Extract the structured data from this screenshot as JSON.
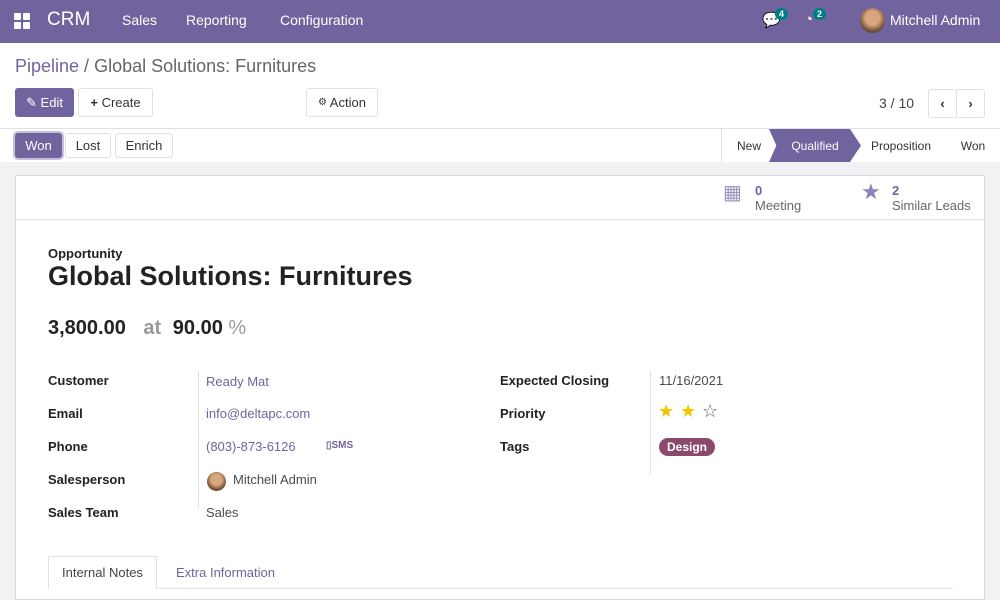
{
  "navbar": {
    "app": "CRM",
    "menus": [
      "Sales",
      "Reporting",
      "Configuration"
    ],
    "messages_count": "4",
    "activities_count": "2",
    "user": "Mitchell Admin",
    "color": "#71639e"
  },
  "breadcrumb": {
    "parent": "Pipeline",
    "current": "Global Solutions: Furnitures"
  },
  "toolbar": {
    "edit": "Edit",
    "create": "Create",
    "action": "Action",
    "pager": "3 / 10"
  },
  "actions": {
    "won": "Won",
    "lost": "Lost",
    "enrich": "Enrich"
  },
  "stages": [
    {
      "label": "New",
      "active": false
    },
    {
      "label": "Qualified",
      "active": true
    },
    {
      "label": "Proposition",
      "active": false
    },
    {
      "label": "Won",
      "active": false
    }
  ],
  "smart_buttons": [
    {
      "count": "0",
      "label": "Meeting",
      "icon": "calendar-icon"
    },
    {
      "count": "2",
      "label": "Similar Leads",
      "icon": "star-icon"
    }
  ],
  "record": {
    "type": "Opportunity",
    "title": "Global Solutions: Furnitures",
    "revenue": "3,800.00",
    "at": "at",
    "probability": "90.00",
    "percent": "%"
  },
  "fields_left": [
    {
      "label": "Customer",
      "value": "Ready Mat"
    },
    {
      "label": "Email",
      "value": "info@deltapc.com"
    },
    {
      "label": "Phone",
      "value": "(803)-873-6126",
      "sms": "SMS"
    },
    {
      "label": "Salesperson",
      "value": "Mitchell Admin"
    },
    {
      "label": "Sales Team",
      "value": "Sales"
    }
  ],
  "fields_right": [
    {
      "label": "Expected Closing",
      "value": "11/16/2021"
    },
    {
      "label": "Priority",
      "stars": 2,
      "max": 3
    },
    {
      "label": "Tags",
      "value": "Design"
    }
  ],
  "tabs": [
    "Internal Notes",
    "Extra Information"
  ]
}
